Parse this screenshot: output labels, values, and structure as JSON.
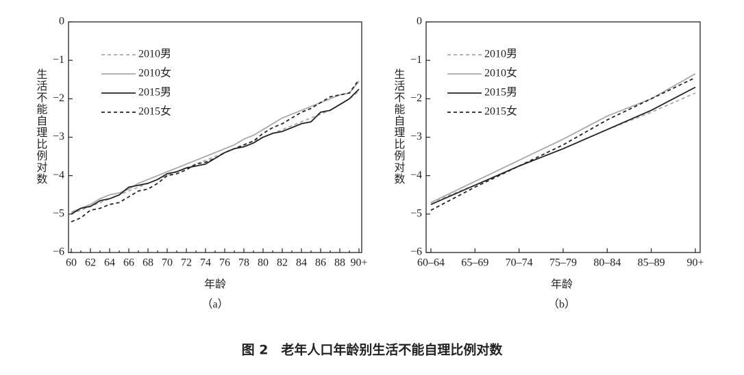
{
  "chart_data": [
    {
      "type": "line",
      "subtitle": "（a）",
      "xlabel": "年龄",
      "ylabel": "生活不能自理比例对数",
      "categories": [
        "60",
        null,
        "62",
        null,
        "64",
        null,
        "66",
        null,
        "68",
        null,
        "70",
        null,
        "72",
        null,
        "74",
        null,
        "76",
        null,
        "78",
        null,
        "80",
        null,
        "82",
        null,
        "84",
        null,
        "86",
        null,
        "88",
        null,
        "90+"
      ],
      "ylim": [
        -6,
        0
      ],
      "yticks": [
        {
          "value": -6,
          "label": "−6"
        },
        {
          "value": -5,
          "label": "−5"
        },
        {
          "value": -4,
          "label": "−4"
        },
        {
          "value": -3,
          "label": "−3"
        },
        {
          "value": -2,
          "label": "−2"
        },
        {
          "value": -1,
          "label": "−1"
        },
        0
      ],
      "legend": "upper left",
      "series": [
        {
          "name": "2010男",
          "color": "#a8a8a8",
          "dashed": true,
          "values": [
            -5.0,
            -4.9,
            -4.8,
            -4.7,
            -4.6,
            -4.5,
            -4.4,
            -4.3,
            -4.2,
            -4.1,
            -4.0,
            -3.9,
            -3.8,
            -3.7,
            -3.6,
            -3.5,
            -3.4,
            -3.3,
            -3.2,
            -3.1,
            -3.0,
            -2.9,
            -2.8,
            -2.7,
            -2.6,
            -2.5,
            -2.4,
            -2.3,
            -2.15,
            -2.0,
            -1.8
          ]
        },
        {
          "name": "2010女",
          "color": "#a8a8a8",
          "dashed": false,
          "values": [
            -4.95,
            -4.85,
            -4.75,
            -4.6,
            -4.5,
            -4.45,
            -4.35,
            -4.2,
            -4.1,
            -4.0,
            -3.9,
            -3.8,
            -3.7,
            -3.6,
            -3.5,
            -3.4,
            -3.3,
            -3.2,
            -3.05,
            -2.95,
            -2.8,
            -2.65,
            -2.5,
            -2.4,
            -2.3,
            -2.2,
            -2.1,
            -2.0,
            -1.9,
            -1.85,
            -1.55
          ]
        },
        {
          "name": "2015男",
          "color": "#222222",
          "dashed": false,
          "values": [
            -5.0,
            -4.85,
            -4.8,
            -4.65,
            -4.6,
            -4.5,
            -4.3,
            -4.25,
            -4.2,
            -4.1,
            -3.95,
            -3.9,
            -3.8,
            -3.75,
            -3.7,
            -3.55,
            -3.4,
            -3.3,
            -3.25,
            -3.15,
            -3.0,
            -2.9,
            -2.85,
            -2.75,
            -2.65,
            -2.6,
            -2.35,
            -2.3,
            -2.15,
            -2.0,
            -1.75
          ]
        },
        {
          "name": "2015女",
          "color": "#222222",
          "dashed": true,
          "values": [
            -5.2,
            -5.1,
            -4.9,
            -4.85,
            -4.75,
            -4.7,
            -4.55,
            -4.4,
            -4.35,
            -4.2,
            -4.0,
            -3.95,
            -3.85,
            -3.7,
            -3.65,
            -3.55,
            -3.4,
            -3.3,
            -3.2,
            -3.1,
            -2.9,
            -2.75,
            -2.65,
            -2.5,
            -2.35,
            -2.25,
            -2.1,
            -1.95,
            -1.9,
            -1.85,
            -1.5
          ]
        }
      ]
    },
    {
      "type": "line",
      "subtitle": "（b）",
      "xlabel": "年龄",
      "ylabel": "生活不能自理比例对数",
      "categories": [
        "60–64",
        "65–69",
        "70–74",
        "75–79",
        "80–84",
        "85–89",
        "90+"
      ],
      "ylim": [
        -6,
        0
      ],
      "yticks": [
        {
          "value": -6,
          "label": "−6"
        },
        {
          "value": -5,
          "label": "−5"
        },
        {
          "value": -4,
          "label": "−4"
        },
        {
          "value": -3,
          "label": "−3"
        },
        {
          "value": -2,
          "label": "−2"
        },
        {
          "value": -1,
          "label": "−1"
        },
        0
      ],
      "legend": "upper left",
      "series": [
        {
          "name": "2010男",
          "color": "#a8a8a8",
          "dashed": true,
          "values": [
            -4.7,
            -4.25,
            -3.75,
            -3.3,
            -2.8,
            -2.35,
            -1.85
          ]
        },
        {
          "name": "2010女",
          "color": "#a8a8a8",
          "dashed": false,
          "values": [
            -4.7,
            -4.15,
            -3.6,
            -3.05,
            -2.45,
            -2.0,
            -1.35
          ]
        },
        {
          "name": "2015男",
          "color": "#222222",
          "dashed": false,
          "values": [
            -4.75,
            -4.25,
            -3.75,
            -3.3,
            -2.8,
            -2.3,
            -1.7
          ]
        },
        {
          "name": "2015女",
          "color": "#222222",
          "dashed": true,
          "values": [
            -4.9,
            -4.3,
            -3.75,
            -3.2,
            -2.55,
            -2.0,
            -1.45
          ]
        }
      ]
    }
  ],
  "caption": "图 2　老年人口年龄别生活不能自理比例对数"
}
